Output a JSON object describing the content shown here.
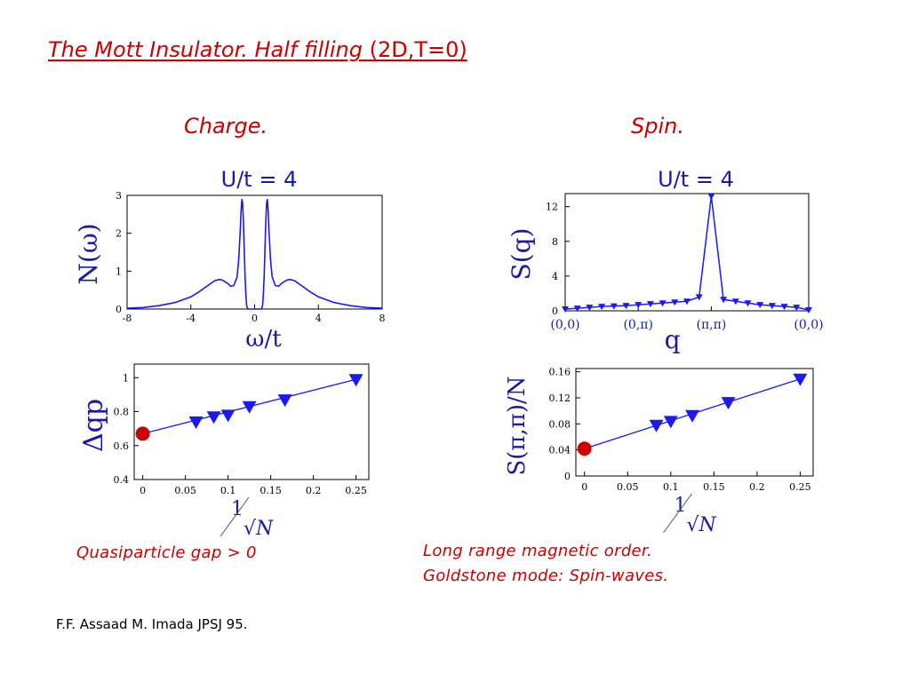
{
  "title": {
    "italic": "The Mott Insulator. Half filling",
    "plain": "(2D,T=0)"
  },
  "sections": {
    "charge": "Charge.",
    "spin": "Spin."
  },
  "captions": {
    "charge": "Quasiparticle  gap  > 0",
    "spin_line1": "Long range magnetic order.",
    "spin_line2": "Goldstone mode: Spin-waves."
  },
  "reference": "F.F. Assaad M. Imada JPSJ 95.",
  "colors": {
    "accent": "#cc0000",
    "series": "#1a1aee",
    "extrap": "#cc0000"
  },
  "chart_data": [
    {
      "id": "dos",
      "type": "line",
      "title": "U/t = 4",
      "xlabel": "ω/t",
      "ylabel": "N(ω)",
      "xlim": [
        -8,
        8
      ],
      "ylim": [
        0,
        3
      ],
      "xticks": [
        "-8",
        "-4",
        "0",
        "4",
        "8"
      ],
      "yticks": [
        "0",
        "1",
        "2",
        "3"
      ],
      "x": [
        -8,
        -7,
        -6,
        -5,
        -4,
        -3.5,
        -3,
        -2.5,
        -2.2,
        -2,
        -1.7,
        -1.5,
        -1.3,
        -1.1,
        -1.0,
        -0.9,
        -0.85,
        -0.8,
        -0.75,
        -0.7,
        -0.65,
        -0.6,
        -0.55,
        -0.5,
        -0.45,
        -0.4,
        0,
        0.4,
        0.45,
        0.5,
        0.55,
        0.6,
        0.65,
        0.7,
        0.75,
        0.8,
        0.85,
        0.9,
        1.0,
        1.1,
        1.3,
        1.5,
        1.7,
        2,
        2.2,
        2.5,
        3,
        3.5,
        4,
        5,
        6,
        7,
        8
      ],
      "y": [
        0.02,
        0.04,
        0.09,
        0.17,
        0.32,
        0.45,
        0.6,
        0.75,
        0.78,
        0.76,
        0.68,
        0.6,
        0.62,
        0.85,
        1.3,
        2.1,
        2.6,
        2.9,
        2.8,
        2.3,
        1.6,
        0.9,
        0.4,
        0.1,
        0.02,
        0,
        0,
        0,
        0.02,
        0.1,
        0.4,
        0.9,
        1.6,
        2.3,
        2.8,
        2.9,
        2.6,
        2.1,
        1.3,
        0.85,
        0.62,
        0.6,
        0.68,
        0.76,
        0.78,
        0.75,
        0.6,
        0.45,
        0.32,
        0.17,
        0.09,
        0.04,
        0.02
      ]
    },
    {
      "id": "sq",
      "type": "line",
      "title": "U/t = 4",
      "xlabel": "q",
      "ylabel": "S(q)",
      "ylim": [
        0,
        13.5
      ],
      "yticks": [
        "0",
        "4",
        "8",
        "12"
      ],
      "xticks": [
        "(0,0)",
        "(0,π)",
        "(π,π)",
        "(0,0)"
      ],
      "xtick_positions": [
        0,
        6,
        12,
        20
      ],
      "x": [
        0,
        1,
        2,
        3,
        4,
        5,
        6,
        7,
        8,
        9,
        10,
        11,
        12,
        13,
        14,
        15,
        16,
        17,
        18,
        19,
        20
      ],
      "y": [
        0.2,
        0.3,
        0.4,
        0.5,
        0.55,
        0.6,
        0.7,
        0.8,
        0.9,
        1.0,
        1.1,
        1.6,
        13.2,
        1.3,
        1.1,
        0.9,
        0.7,
        0.6,
        0.5,
        0.4,
        0.1
      ]
    },
    {
      "id": "gap",
      "type": "scatter",
      "ylabel": "Δqp",
      "xlabel": "1/√N",
      "xlim": [
        -0.01,
        0.265
      ],
      "ylim": [
        0.4,
        1.08
      ],
      "xticks": [
        "0",
        "0.05",
        "0.1",
        "0.15",
        "0.2",
        "0.25"
      ],
      "yticks": [
        "0.4",
        "0.6",
        "0.8",
        "1"
      ],
      "x": [
        0.0625,
        0.0833,
        0.1,
        0.125,
        0.1667,
        0.25
      ],
      "y": [
        0.74,
        0.77,
        0.78,
        0.83,
        0.87,
        0.99
      ],
      "extrapolated": {
        "x": 0,
        "y": 0.67
      },
      "fit": {
        "x0": 0,
        "y0": 0.67,
        "x1": 0.25,
        "y1": 0.99
      }
    },
    {
      "id": "mag",
      "type": "scatter",
      "ylabel": "S(π,π)/N",
      "xlabel": "1/√N",
      "xlim": [
        -0.01,
        0.265
      ],
      "ylim": [
        0,
        0.165
      ],
      "xticks": [
        "0",
        "0.05",
        "0.1",
        "0.15",
        "0.2",
        "0.25"
      ],
      "yticks": [
        "0",
        "0.04",
        "0.08",
        "0.12",
        "0.16"
      ],
      "x": [
        0.0833,
        0.1,
        0.125,
        0.1667,
        0.25
      ],
      "y": [
        0.078,
        0.084,
        0.093,
        0.113,
        0.149
      ],
      "extrapolated": {
        "x": 0,
        "y": 0.042
      },
      "fit": {
        "x0": 0,
        "y0": 0.042,
        "x1": 0.25,
        "y1": 0.149
      }
    }
  ]
}
